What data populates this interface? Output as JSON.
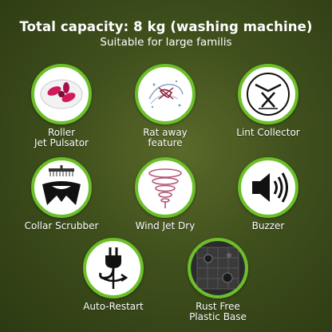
{
  "header": {
    "title": "Total capacity: 8 kg (washing machine)",
    "subtitle": "Suitable for large familis"
  },
  "accent_color": "#6bbf28",
  "features": [
    {
      "line1": "Roller",
      "line2": "Jet Pulsator",
      "icon": "pulsator-icon"
    },
    {
      "line1": "Rat away",
      "line2": "feature",
      "icon": "rat-away-icon"
    },
    {
      "line1": "Lint Collector",
      "line2": "",
      "icon": "lint-collector-icon"
    },
    {
      "line1": "Collar Scrubber",
      "line2": "",
      "icon": "collar-scrubber-icon"
    },
    {
      "line1": "Wind Jet Dry",
      "line2": "",
      "icon": "wind-jet-dry-icon"
    },
    {
      "line1": "Buzzer",
      "line2": "",
      "icon": "buzzer-icon"
    },
    {
      "line1": "Auto-Restart",
      "line2": "",
      "icon": "auto-restart-icon"
    },
    {
      "line1": "Rust Free",
      "line2": "Plastic Base",
      "icon": "plastic-base-icon"
    }
  ]
}
